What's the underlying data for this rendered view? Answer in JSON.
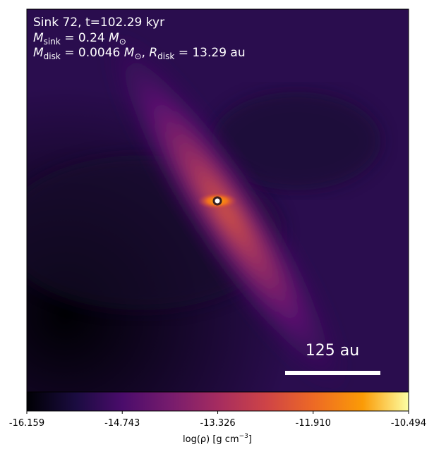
{
  "chart_data": {
    "type": "image",
    "annotations": {
      "line1": "Sink 72, t=102.29 kyr",
      "line2": {
        "m": "M",
        "m_sub": "sink",
        "eq": " = 0.24 ",
        "unit": "M",
        "unit_sub": "⊙"
      },
      "line3": {
        "m": "M",
        "m_sub": "disk",
        "eq": " = 0.0046 ",
        "unit": "M",
        "unit_sub": "⊙",
        "sep": ", ",
        "r": "R",
        "r_sub": "disk",
        "req": " = 13.29 au"
      }
    },
    "scale_bar": "125 au",
    "colorbar": {
      "label": {
        "text": "log(ρ) [g cm",
        "sup": "−3",
        "end": "]"
      },
      "lim": [
        -16.159,
        -10.494
      ],
      "ticks": [
        -16.159,
        -14.743,
        -13.326,
        -11.91,
        -10.494
      ],
      "colormap": "inferno"
    }
  }
}
